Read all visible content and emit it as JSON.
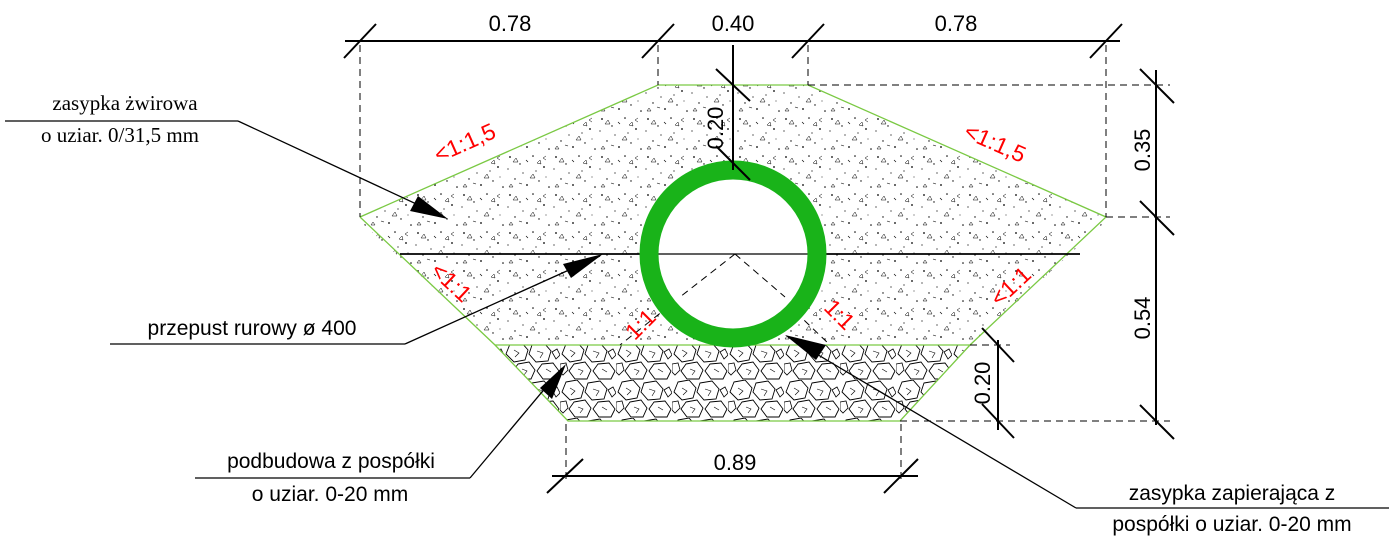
{
  "colors": {
    "pipe": "#19b319",
    "slope_labels": "#ff0000",
    "outline": "#7ac943",
    "lines": "#000000"
  },
  "dimensions": {
    "top_left": "0.78",
    "top_middle": "0.40",
    "top_right": "0.78",
    "cover_height": "0.20",
    "right_upper": "0.35",
    "right_lower": "0.54",
    "base_height": "0.20",
    "bottom_width": "0.89"
  },
  "slopes": {
    "upper_left": "<1:1,5",
    "upper_right": "<1:1,5",
    "lower_left": "<1:1",
    "lower_right": "<1:1",
    "inner_left": "1:1",
    "inner_right": "1:1"
  },
  "labels": {
    "gravel_fill_line1": "zasypka żwirowa",
    "gravel_fill_line2": "o uziar. 0/31,5 mm",
    "pipe_culvert": "przepust rurowy ø 400",
    "base_line1": "podbudowa z pospółki",
    "base_line2": "o uziar. 0-20 mm",
    "locking_fill_line1": "zasypka zapierająca  z",
    "locking_fill_line2": "pospółki o uziar. 0-20 mm"
  }
}
